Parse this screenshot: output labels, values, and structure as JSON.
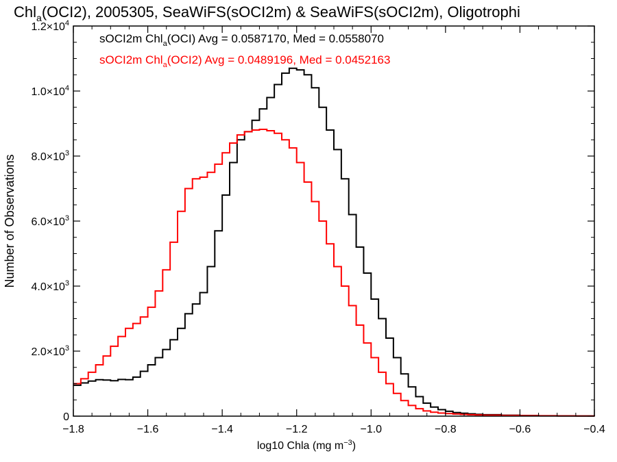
{
  "chart_data": {
    "type": "line",
    "title": {
      "prefix": "Chl",
      "sub": "a",
      "rest": "(OCI2), 2005305, SeaWiFS(sOCI2m) & SeaWiFS(sOCI2m), Oligotrophi"
    },
    "xlabel": {
      "main": "log10 Chla (mg m",
      "sup": "−3",
      "end": ")"
    },
    "ylabel": "Number of Observations",
    "xlim": [
      -1.8,
      -0.4
    ],
    "ylim": [
      0,
      12000
    ],
    "x_ticks": [
      {
        "value": -1.8,
        "label": "−1.8"
      },
      {
        "value": -1.6,
        "label": "−1.6"
      },
      {
        "value": -1.4,
        "label": "−1.4"
      },
      {
        "value": -1.2,
        "label": "−1.2"
      },
      {
        "value": -1.0,
        "label": "−1.0"
      },
      {
        "value": -0.8,
        "label": "−0.8"
      },
      {
        "value": -0.6,
        "label": "−0.6"
      },
      {
        "value": -0.4,
        "label": "−0.4"
      }
    ],
    "y_ticks": [
      {
        "value": 0,
        "mant": "0",
        "exp": ""
      },
      {
        "value": 2000,
        "mant": "2.0×10",
        "exp": "3"
      },
      {
        "value": 4000,
        "mant": "4.0×10",
        "exp": "3"
      },
      {
        "value": 6000,
        "mant": "6.0×10",
        "exp": "3"
      },
      {
        "value": 8000,
        "mant": "8.0×10",
        "exp": "3"
      },
      {
        "value": 10000,
        "mant": "1.0×10",
        "exp": "4"
      },
      {
        "value": 12000,
        "mant": "1.2×10",
        "exp": "4"
      }
    ],
    "legend": [
      {
        "pre": "sOCI2m Chl",
        "sub": "a",
        "post": "(OCI) Avg = 0.0587170, Med = 0.0558070",
        "color": "#000000"
      },
      {
        "pre": "sOCI2m Chl",
        "sub": "a",
        "post": "(OCI2) Avg = 0.0489196, Med = 0.0452163",
        "color": "#ff0000"
      }
    ],
    "series": [
      {
        "color": "#000000",
        "step": true,
        "points": [
          [
            -1.8,
            950
          ],
          [
            -1.78,
            1020
          ],
          [
            -1.76,
            1080
          ],
          [
            -1.74,
            1120
          ],
          [
            -1.72,
            1110
          ],
          [
            -1.7,
            1090
          ],
          [
            -1.68,
            1130
          ],
          [
            -1.66,
            1120
          ],
          [
            -1.64,
            1200
          ],
          [
            -1.62,
            1380
          ],
          [
            -1.6,
            1580
          ],
          [
            -1.58,
            1800
          ],
          [
            -1.56,
            2050
          ],
          [
            -1.54,
            2350
          ],
          [
            -1.52,
            2700
          ],
          [
            -1.5,
            3150
          ],
          [
            -1.48,
            3450
          ],
          [
            -1.46,
            3800
          ],
          [
            -1.44,
            4600
          ],
          [
            -1.42,
            5700
          ],
          [
            -1.4,
            6800
          ],
          [
            -1.38,
            7800
          ],
          [
            -1.36,
            8500
          ],
          [
            -1.34,
            8750
          ],
          [
            -1.32,
            9100
          ],
          [
            -1.3,
            9450
          ],
          [
            -1.28,
            9800
          ],
          [
            -1.26,
            10200
          ],
          [
            -1.24,
            10550
          ],
          [
            -1.22,
            10700
          ],
          [
            -1.2,
            10650
          ],
          [
            -1.18,
            10500
          ],
          [
            -1.16,
            10100
          ],
          [
            -1.14,
            9500
          ],
          [
            -1.12,
            8800
          ],
          [
            -1.1,
            8200
          ],
          [
            -1.08,
            7300
          ],
          [
            -1.06,
            6200
          ],
          [
            -1.04,
            5200
          ],
          [
            -1.02,
            4400
          ],
          [
            -1.0,
            3600
          ],
          [
            -0.98,
            3000
          ],
          [
            -0.96,
            2400
          ],
          [
            -0.94,
            1800
          ],
          [
            -0.92,
            1300
          ],
          [
            -0.9,
            900
          ],
          [
            -0.88,
            600
          ],
          [
            -0.86,
            400
          ],
          [
            -0.84,
            280
          ],
          [
            -0.82,
            200
          ],
          [
            -0.8,
            150
          ],
          [
            -0.78,
            110
          ],
          [
            -0.76,
            90
          ],
          [
            -0.74,
            70
          ],
          [
            -0.72,
            55
          ],
          [
            -0.7,
            45
          ],
          [
            -0.65,
            30
          ],
          [
            -0.6,
            20
          ],
          [
            -0.55,
            12
          ],
          [
            -0.5,
            8
          ],
          [
            -0.45,
            5
          ],
          [
            -0.4,
            3
          ]
        ]
      },
      {
        "color": "#ff0000",
        "step": true,
        "points": [
          [
            -1.8,
            1000
          ],
          [
            -1.78,
            1150
          ],
          [
            -1.76,
            1350
          ],
          [
            -1.74,
            1580
          ],
          [
            -1.72,
            1850
          ],
          [
            -1.7,
            2150
          ],
          [
            -1.68,
            2450
          ],
          [
            -1.66,
            2700
          ],
          [
            -1.64,
            2850
          ],
          [
            -1.62,
            3050
          ],
          [
            -1.6,
            3350
          ],
          [
            -1.58,
            3850
          ],
          [
            -1.56,
            4500
          ],
          [
            -1.54,
            5350
          ],
          [
            -1.52,
            6300
          ],
          [
            -1.5,
            7000
          ],
          [
            -1.48,
            7300
          ],
          [
            -1.46,
            7350
          ],
          [
            -1.44,
            7500
          ],
          [
            -1.42,
            7750
          ],
          [
            -1.4,
            8100
          ],
          [
            -1.38,
            8400
          ],
          [
            -1.36,
            8650
          ],
          [
            -1.34,
            8750
          ],
          [
            -1.32,
            8800
          ],
          [
            -1.3,
            8820
          ],
          [
            -1.28,
            8780
          ],
          [
            -1.26,
            8700
          ],
          [
            -1.24,
            8500
          ],
          [
            -1.22,
            8250
          ],
          [
            -1.2,
            7800
          ],
          [
            -1.18,
            7200
          ],
          [
            -1.16,
            6600
          ],
          [
            -1.14,
            6000
          ],
          [
            -1.12,
            5300
          ],
          [
            -1.1,
            4600
          ],
          [
            -1.08,
            4000
          ],
          [
            -1.06,
            3400
          ],
          [
            -1.04,
            2800
          ],
          [
            -1.02,
            2250
          ],
          [
            -1.0,
            1800
          ],
          [
            -0.98,
            1350
          ],
          [
            -0.96,
            1000
          ],
          [
            -0.94,
            700
          ],
          [
            -0.92,
            480
          ],
          [
            -0.9,
            330
          ],
          [
            -0.88,
            230
          ],
          [
            -0.86,
            160
          ],
          [
            -0.84,
            120
          ],
          [
            -0.82,
            95
          ],
          [
            -0.8,
            80
          ],
          [
            -0.78,
            65
          ],
          [
            -0.76,
            55
          ],
          [
            -0.74,
            45
          ],
          [
            -0.72,
            38
          ],
          [
            -0.7,
            30
          ],
          [
            -0.65,
            22
          ],
          [
            -0.6,
            15
          ],
          [
            -0.55,
            10
          ],
          [
            -0.5,
            7
          ],
          [
            -0.45,
            4
          ],
          [
            -0.4,
            3
          ]
        ]
      }
    ]
  }
}
